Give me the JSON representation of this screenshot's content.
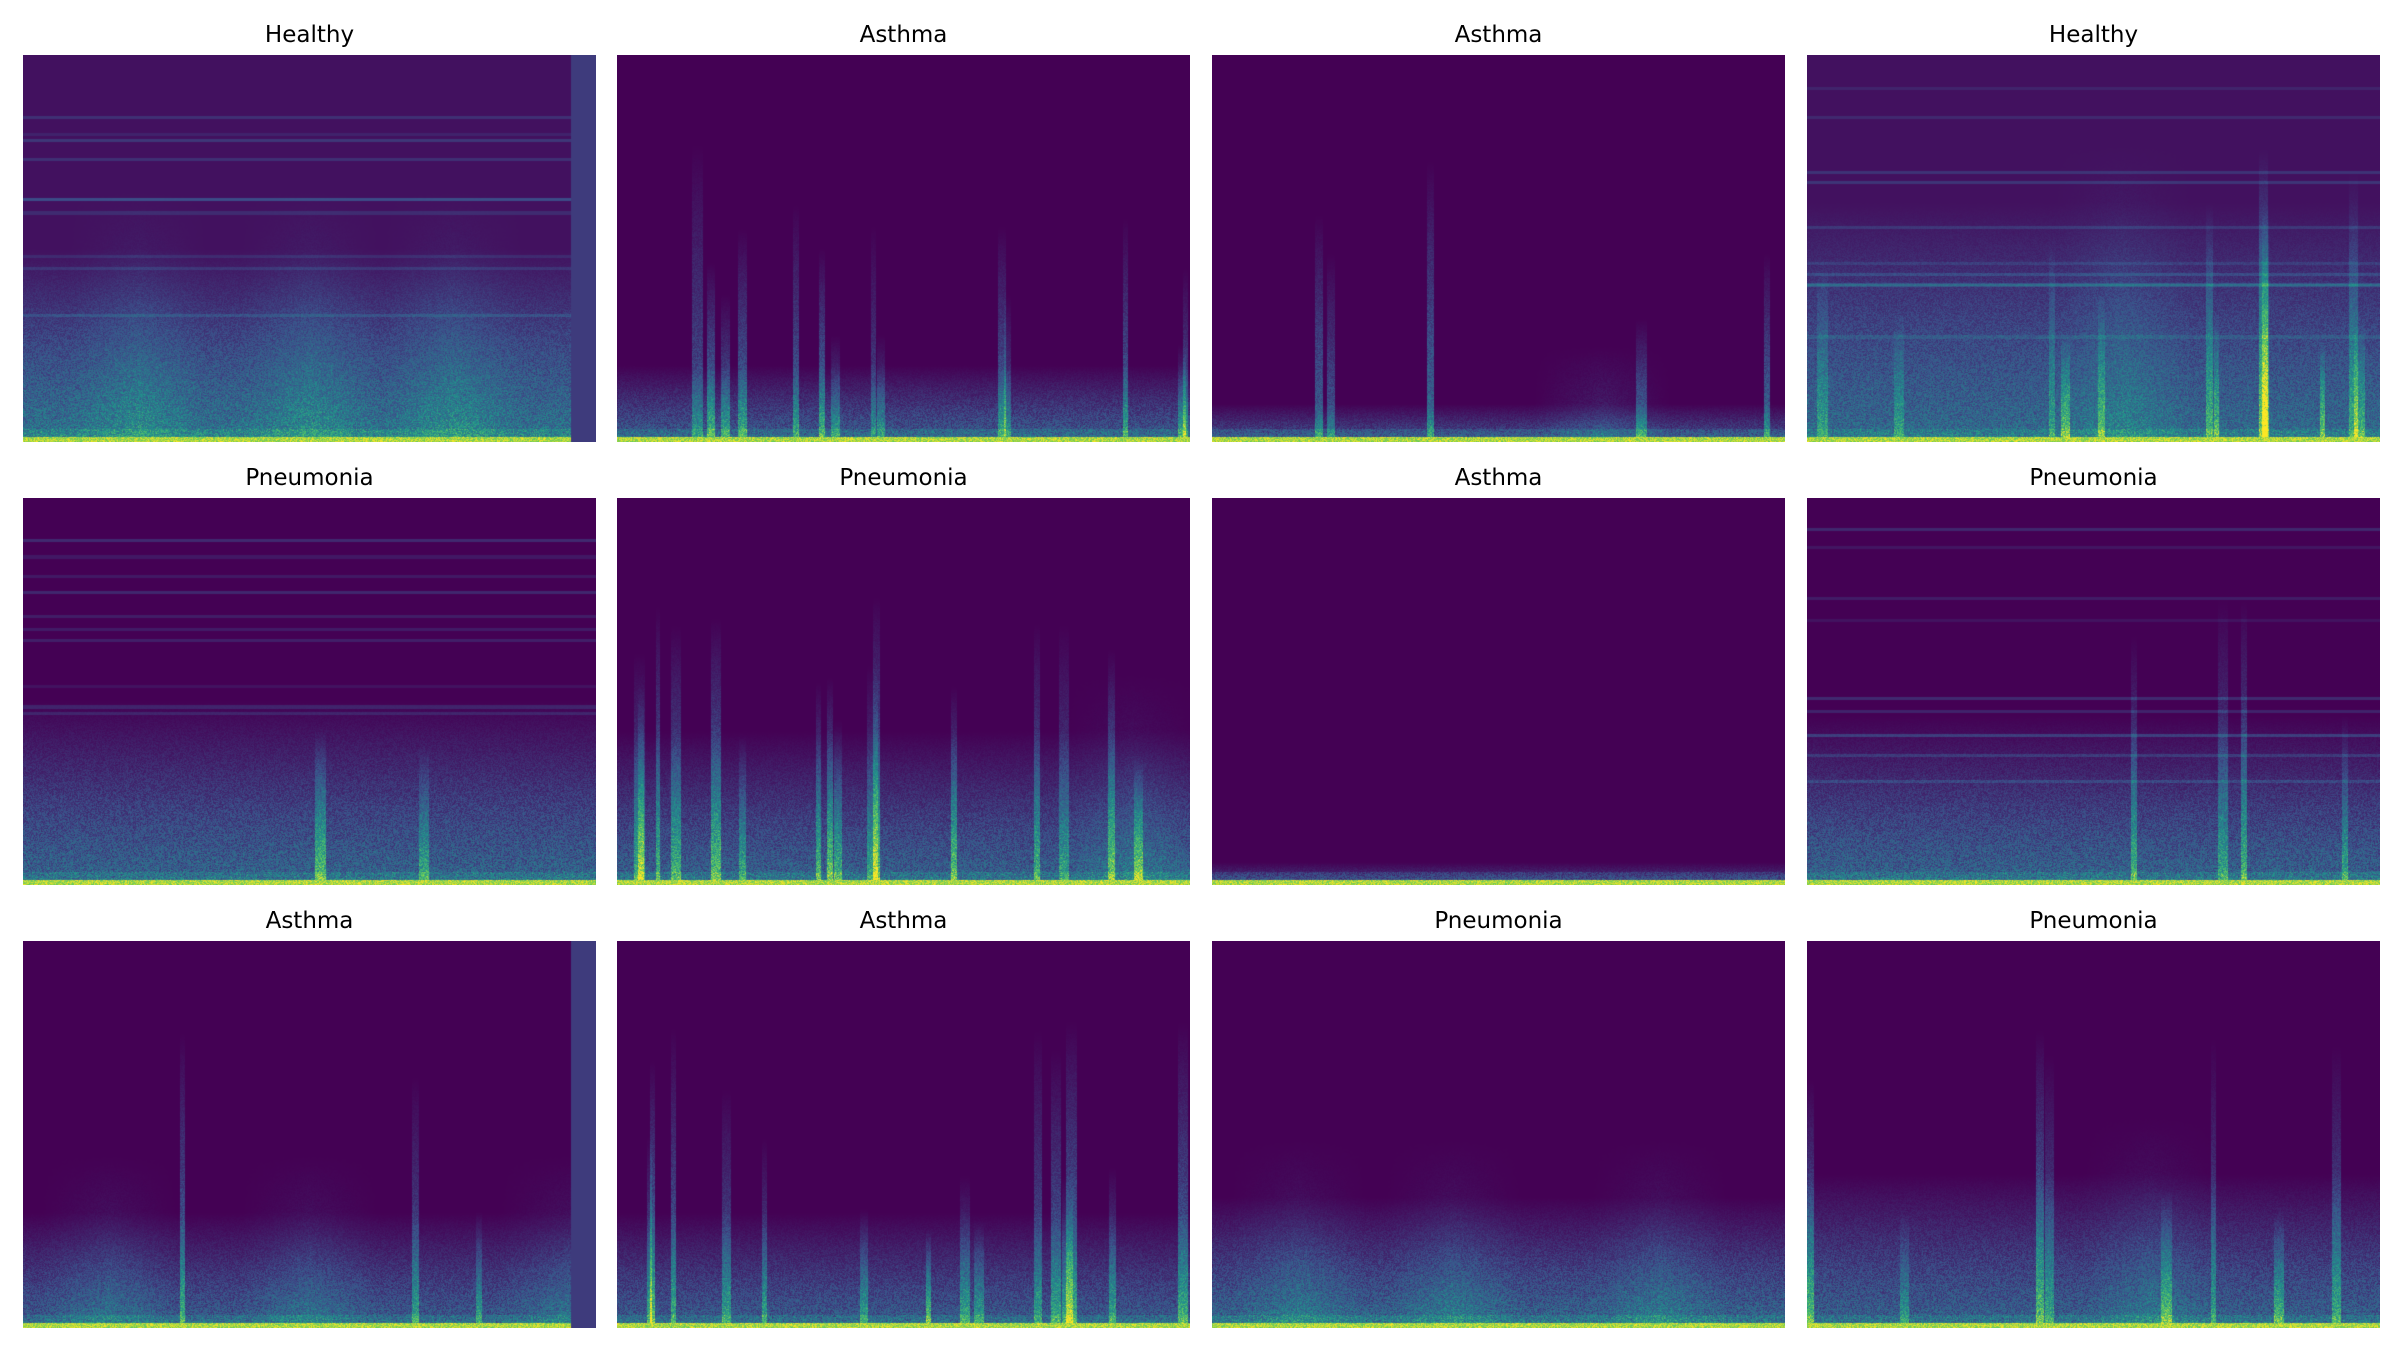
{
  "figure": {
    "panels": [
      {
        "title": "Healthy",
        "variant": "healthy_banded"
      },
      {
        "title": "Asthma",
        "variant": "asthma_spiky"
      },
      {
        "title": "Asthma",
        "variant": "asthma_low"
      },
      {
        "title": "Healthy",
        "variant": "healthy_noisy"
      },
      {
        "title": "Pneumonia",
        "variant": "pneumonia_mid"
      },
      {
        "title": "Pneumonia",
        "variant": "pneumonia_spiky"
      },
      {
        "title": "Asthma",
        "variant": "asthma_flat"
      },
      {
        "title": "Pneumonia",
        "variant": "pneumonia_dashed"
      },
      {
        "title": "Asthma",
        "variant": "asthma_blobs"
      },
      {
        "title": "Asthma",
        "variant": "asthma_spiky2"
      },
      {
        "title": "Pneumonia",
        "variant": "pneumonia_blobs"
      },
      {
        "title": "Pneumonia",
        "variant": "pneumonia_tall"
      }
    ],
    "colormap": [
      "#440154",
      "#3b528b",
      "#21918c",
      "#5ec962",
      "#fde725"
    ]
  }
}
